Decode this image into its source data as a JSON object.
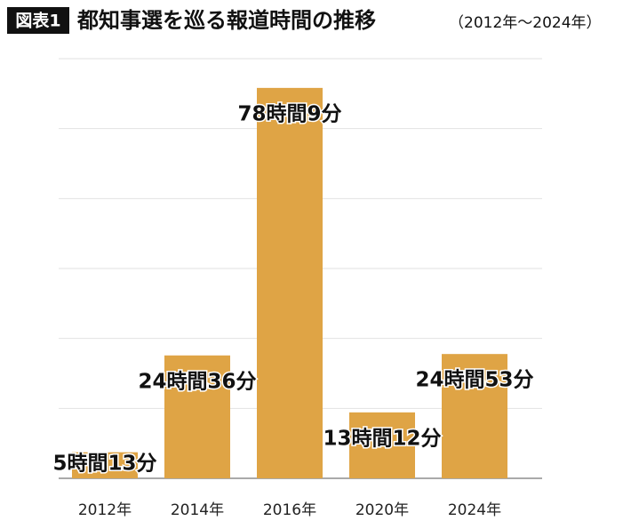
{
  "chart_data": {
    "type": "bar",
    "figure_label": "図表1",
    "title": "都知事選を巡る報道時間の推移",
    "subtitle": "（2012年～2024年）",
    "categories": [
      "2012年",
      "2014年",
      "2016年",
      "2020年",
      "2024年"
    ],
    "values": [
      313,
      1476,
      4689,
      792,
      1493
    ],
    "value_labels": [
      "5時間13分",
      "24時間36分",
      "78時間9分",
      "13時間12分",
      "24時間53分"
    ],
    "color": "#dfa445",
    "ylim": [
      0,
      5040
    ],
    "yticks": [
      0,
      840,
      1680,
      2520,
      3360,
      4200,
      5040
    ],
    "grid": true
  }
}
